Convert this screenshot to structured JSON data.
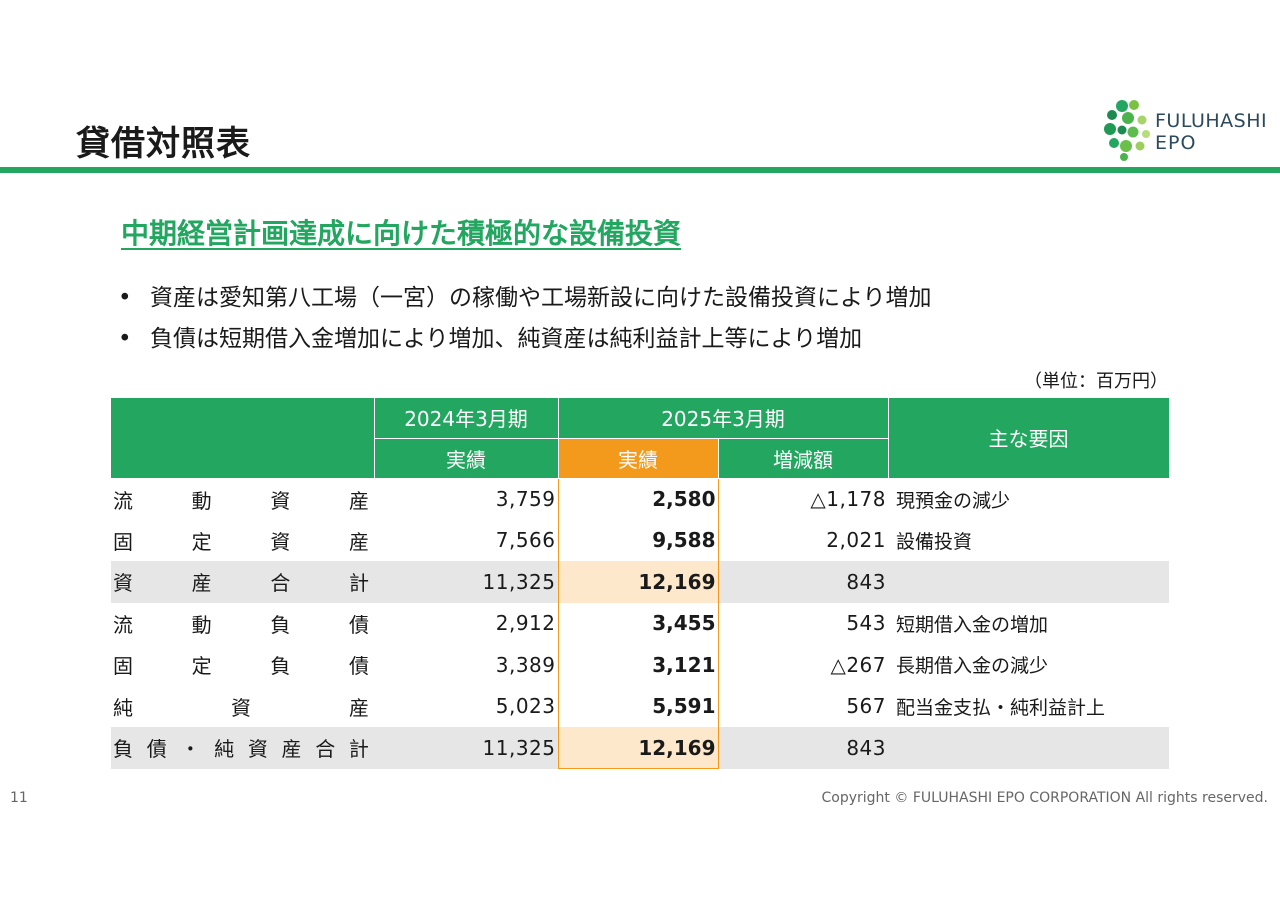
{
  "slide": {
    "title": "貸借対照表",
    "subtitle": "中期経営計画達成に向けた積極的な設備投資",
    "bullets": [
      "資産は愛知第八工場（一宮）の稼働や工場新設に向けた設備投資により増加",
      "負債は短期借入金増加により増加、純資産は純利益計上等により増加"
    ],
    "bullet_marker": "•",
    "unit": "（単位：百万円）",
    "page_number": "11",
    "copyright": "Copyright © FULUHASHI EPO CORPORATION All rights reserved."
  },
  "logo": {
    "line1": "FULUHASHI",
    "line2": "EPO",
    "accent_color": "#22a660"
  },
  "table": {
    "header": {
      "prev_period": "2024年3月期",
      "cur_period": "2025年3月期",
      "factors": "主な要因",
      "prev_actual": "実績",
      "cur_actual": "実績",
      "change": "増減額"
    },
    "rows": [
      {
        "label": [
          "流",
          "動",
          "資",
          "産"
        ],
        "prev": "3,759",
        "cur": "2,580",
        "change": "△1,178",
        "factor": "現預金の減少",
        "shaded": false
      },
      {
        "label": [
          "固",
          "定",
          "資",
          "産"
        ],
        "prev": "7,566",
        "cur": "9,588",
        "change": "2,021",
        "factor": "設備投資",
        "shaded": false
      },
      {
        "label": [
          "資",
          "産",
          "合",
          "計"
        ],
        "prev": "11,325",
        "cur": "12,169",
        "change": "843",
        "factor": "",
        "shaded": true
      },
      {
        "label": [
          "流",
          "動",
          "負",
          "債"
        ],
        "prev": "2,912",
        "cur": "3,455",
        "change": "543",
        "factor": "短期借入金の増加",
        "shaded": false
      },
      {
        "label": [
          "固",
          "定",
          "負",
          "債"
        ],
        "prev": "3,389",
        "cur": "3,121",
        "change": "△267",
        "factor": "長期借入金の減少",
        "shaded": false
      },
      {
        "label": [
          "純",
          "資",
          "産"
        ],
        "prev": "5,023",
        "cur": "5,591",
        "change": "567",
        "factor": "配当金支払・純利益計上",
        "shaded": false
      },
      {
        "label": [
          "負",
          "債",
          "・",
          "純",
          "資",
          "産",
          "合",
          "計"
        ],
        "prev": "11,325",
        "cur": "12,169",
        "change": "843",
        "factor": "",
        "shaded": true
      }
    ]
  },
  "colors": {
    "green": "#22a660",
    "orange": "#f39a1d",
    "shade": "#e6e6e6",
    "orange_shade": "#fde8cc"
  }
}
